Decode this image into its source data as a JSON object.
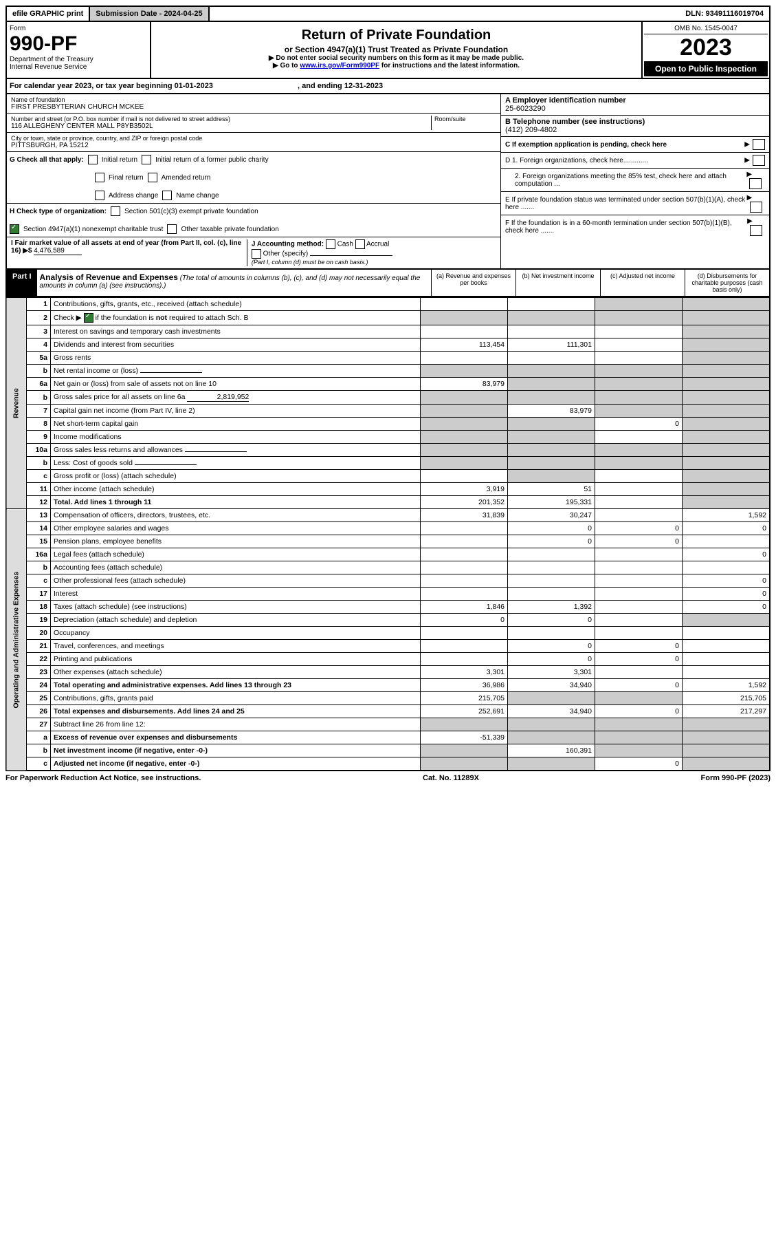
{
  "topbar": {
    "efile": "efile GRAPHIC print",
    "submission_label": "Submission Date - 2024-04-25",
    "dln": "DLN: 93491116019704"
  },
  "header": {
    "form_label": "Form",
    "form_number": "990-PF",
    "dept": "Department of the Treasury",
    "irs": "Internal Revenue Service",
    "title": "Return of Private Foundation",
    "subtitle": "or Section 4947(a)(1) Trust Treated as Private Foundation",
    "note1": "▶ Do not enter social security numbers on this form as it may be made public.",
    "note2_pre": "▶ Go to ",
    "note2_link": "www.irs.gov/Form990PF",
    "note2_post": " for instructions and the latest information.",
    "omb": "OMB No. 1545-0047",
    "year": "2023",
    "open": "Open to Public Inspection"
  },
  "calendar": {
    "text_pre": "For calendar year 2023, or tax year beginning ",
    "begin": "01-01-2023",
    "mid": " , and ending ",
    "end": "12-31-2023"
  },
  "foundation": {
    "name_label": "Name of foundation",
    "name": "FIRST PRESBYTERIAN CHURCH MCKEE",
    "addr_label": "Number and street (or P.O. box number if mail is not delivered to street address)",
    "addr": "116 ALLEGHENY CENTER MALL P8YB3502L",
    "room_label": "Room/suite",
    "city_label": "City or town, state or province, country, and ZIP or foreign postal code",
    "city": "PITTSBURGH, PA  15212"
  },
  "right_info": {
    "A_label": "A Employer identification number",
    "A_val": "25-6023290",
    "B_label": "B Telephone number (see instructions)",
    "B_val": "(412) 209-4802",
    "C_label": "C If exemption application is pending, check here",
    "D1": "D 1. Foreign organizations, check here.............",
    "D2": "2. Foreign organizations meeting the 85% test, check here and attach computation ...",
    "E": "E  If private foundation status was terminated under section 507(b)(1)(A), check here .......",
    "F": "F  If the foundation is in a 60-month termination under section 507(b)(1)(B), check here .......",
    "G_label": "G Check all that apply:",
    "G_opts": [
      "Initial return",
      "Initial return of a former public charity",
      "Final return",
      "Amended return",
      "Address change",
      "Name change"
    ],
    "H_label": "H Check type of organization:",
    "H_opt1": "Section 501(c)(3) exempt private foundation",
    "H_opt2": "Section 4947(a)(1) nonexempt charitable trust",
    "H_opt3": "Other taxable private foundation",
    "I_label": "I Fair market value of all assets at end of year (from Part II, col. (c), line 16) ▶$",
    "I_val": "4,476,589",
    "J_label": "J Accounting method:",
    "J_opts": [
      "Cash",
      "Accrual",
      "Other (specify)"
    ],
    "J_note": "(Part I, column (d) must be on cash basis.)"
  },
  "part1": {
    "label": "Part I",
    "title": "Analysis of Revenue and Expenses",
    "title_note": "(The total of amounts in columns (b), (c), and (d) may not necessarily equal the amounts in column (a) (see instructions).)",
    "cols": {
      "a": "(a) Revenue and expenses per books",
      "b": "(b) Net investment income",
      "c": "(c) Adjusted net income",
      "d": "(d) Disbursements for charitable purposes (cash basis only)"
    }
  },
  "sections": {
    "revenue": "Revenue",
    "expenses": "Operating and Administrative Expenses"
  },
  "rows": [
    {
      "n": "1",
      "desc": "Contributions, gifts, grants, etc., received (attach schedule)",
      "a": "",
      "b": "",
      "c": "shade",
      "d": "shade"
    },
    {
      "n": "2",
      "desc": "Check ▶ ☑ if the foundation is not required to attach Sch. B",
      "a": "shade",
      "b": "shade",
      "c": "shade",
      "d": "shade",
      "checked": true
    },
    {
      "n": "3",
      "desc": "Interest on savings and temporary cash investments",
      "a": "",
      "b": "",
      "c": "",
      "d": "shade"
    },
    {
      "n": "4",
      "desc": "Dividends and interest from securities",
      "a": "113,454",
      "b": "111,301",
      "c": "",
      "d": "shade"
    },
    {
      "n": "5a",
      "desc": "Gross rents",
      "a": "",
      "b": "",
      "c": "",
      "d": "shade"
    },
    {
      "n": "b",
      "desc": "Net rental income or (loss)",
      "inline": "",
      "a": "shade",
      "b": "shade",
      "c": "shade",
      "d": "shade"
    },
    {
      "n": "6a",
      "desc": "Net gain or (loss) from sale of assets not on line 10",
      "a": "83,979",
      "b": "shade",
      "c": "shade",
      "d": "shade"
    },
    {
      "n": "b",
      "desc": "Gross sales price for all assets on line 6a",
      "inline": "2,819,952",
      "a": "shade",
      "b": "shade",
      "c": "shade",
      "d": "shade"
    },
    {
      "n": "7",
      "desc": "Capital gain net income (from Part IV, line 2)",
      "a": "shade",
      "b": "83,979",
      "c": "shade",
      "d": "shade"
    },
    {
      "n": "8",
      "desc": "Net short-term capital gain",
      "a": "shade",
      "b": "shade",
      "c": "0",
      "d": "shade"
    },
    {
      "n": "9",
      "desc": "Income modifications",
      "a": "shade",
      "b": "shade",
      "c": "",
      "d": "shade"
    },
    {
      "n": "10a",
      "desc": "Gross sales less returns and allowances",
      "inline": "",
      "a": "shade",
      "b": "shade",
      "c": "shade",
      "d": "shade"
    },
    {
      "n": "b",
      "desc": "Less: Cost of goods sold",
      "inline": "",
      "a": "shade",
      "b": "shade",
      "c": "shade",
      "d": "shade"
    },
    {
      "n": "c",
      "desc": "Gross profit or (loss) (attach schedule)",
      "a": "",
      "b": "shade",
      "c": "",
      "d": "shade"
    },
    {
      "n": "11",
      "desc": "Other income (attach schedule)",
      "a": "3,919",
      "b": "51",
      "c": "",
      "d": "shade"
    },
    {
      "n": "12",
      "desc": "Total. Add lines 1 through 11",
      "bold": true,
      "a": "201,352",
      "b": "195,331",
      "c": "",
      "d": "shade"
    },
    {
      "n": "13",
      "desc": "Compensation of officers, directors, trustees, etc.",
      "a": "31,839",
      "b": "30,247",
      "c": "",
      "d": "1,592"
    },
    {
      "n": "14",
      "desc": "Other employee salaries and wages",
      "a": "",
      "b": "0",
      "c": "0",
      "d": "0"
    },
    {
      "n": "15",
      "desc": "Pension plans, employee benefits",
      "a": "",
      "b": "0",
      "c": "0",
      "d": ""
    },
    {
      "n": "16a",
      "desc": "Legal fees (attach schedule)",
      "a": "",
      "b": "",
      "c": "",
      "d": "0"
    },
    {
      "n": "b",
      "desc": "Accounting fees (attach schedule)",
      "a": "",
      "b": "",
      "c": "",
      "d": ""
    },
    {
      "n": "c",
      "desc": "Other professional fees (attach schedule)",
      "a": "",
      "b": "",
      "c": "",
      "d": "0"
    },
    {
      "n": "17",
      "desc": "Interest",
      "a": "",
      "b": "",
      "c": "",
      "d": "0"
    },
    {
      "n": "18",
      "desc": "Taxes (attach schedule) (see instructions)",
      "a": "1,846",
      "b": "1,392",
      "c": "",
      "d": "0"
    },
    {
      "n": "19",
      "desc": "Depreciation (attach schedule) and depletion",
      "a": "0",
      "b": "0",
      "c": "",
      "d": "shade"
    },
    {
      "n": "20",
      "desc": "Occupancy",
      "a": "",
      "b": "",
      "c": "",
      "d": ""
    },
    {
      "n": "21",
      "desc": "Travel, conferences, and meetings",
      "a": "",
      "b": "0",
      "c": "0",
      "d": ""
    },
    {
      "n": "22",
      "desc": "Printing and publications",
      "a": "",
      "b": "0",
      "c": "0",
      "d": ""
    },
    {
      "n": "23",
      "desc": "Other expenses (attach schedule)",
      "a": "3,301",
      "b": "3,301",
      "c": "",
      "d": ""
    },
    {
      "n": "24",
      "desc": "Total operating and administrative expenses. Add lines 13 through 23",
      "bold": true,
      "a": "36,986",
      "b": "34,940",
      "c": "0",
      "d": "1,592"
    },
    {
      "n": "25",
      "desc": "Contributions, gifts, grants paid",
      "a": "215,705",
      "b": "shade",
      "c": "shade",
      "d": "215,705"
    },
    {
      "n": "26",
      "desc": "Total expenses and disbursements. Add lines 24 and 25",
      "bold": true,
      "a": "252,691",
      "b": "34,940",
      "c": "0",
      "d": "217,297"
    },
    {
      "n": "27",
      "desc": "Subtract line 26 from line 12:",
      "a": "shade",
      "b": "shade",
      "c": "shade",
      "d": "shade"
    },
    {
      "n": "a",
      "desc": "Excess of revenue over expenses and disbursements",
      "bold": true,
      "a": "-51,339",
      "b": "shade",
      "c": "shade",
      "d": "shade"
    },
    {
      "n": "b",
      "desc": "Net investment income (if negative, enter -0-)",
      "bold": true,
      "a": "shade",
      "b": "160,391",
      "c": "shade",
      "d": "shade"
    },
    {
      "n": "c",
      "desc": "Adjusted net income (if negative, enter -0-)",
      "bold": true,
      "a": "shade",
      "b": "shade",
      "c": "0",
      "d": "shade"
    }
  ],
  "footer": {
    "left": "For Paperwork Reduction Act Notice, see instructions.",
    "mid": "Cat. No. 11289X",
    "right": "Form 990-PF (2023)"
  }
}
